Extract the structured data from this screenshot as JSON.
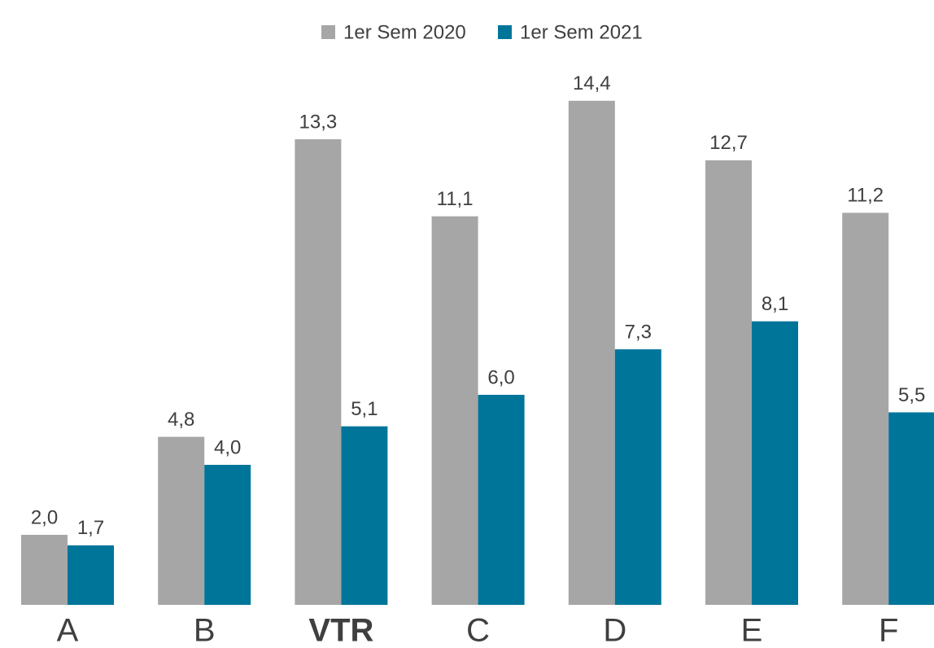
{
  "chart_data": {
    "type": "bar",
    "categories": [
      "A",
      "B",
      "VTR",
      "C",
      "D",
      "E",
      "F"
    ],
    "bold_category_index": 2,
    "series": [
      {
        "name": "1er Sem 2020",
        "color": "#a6a6a6",
        "values": [
          2.0,
          4.8,
          13.3,
          11.1,
          14.4,
          12.7,
          11.2
        ],
        "value_labels": [
          "2,0",
          "4,8",
          "13,3",
          "11,1",
          "14,4",
          "12,7",
          "11,2"
        ]
      },
      {
        "name": "1er Sem 2021",
        "color": "#00759a",
        "values": [
          1.7,
          4.0,
          5.1,
          6.0,
          7.3,
          8.1,
          5.5
        ],
        "value_labels": [
          "1,7",
          "4,0",
          "5,1",
          "6,0",
          "7,3",
          "8,1",
          "5,5"
        ]
      }
    ],
    "ylim": [
      0,
      16
    ],
    "legend": "top"
  }
}
